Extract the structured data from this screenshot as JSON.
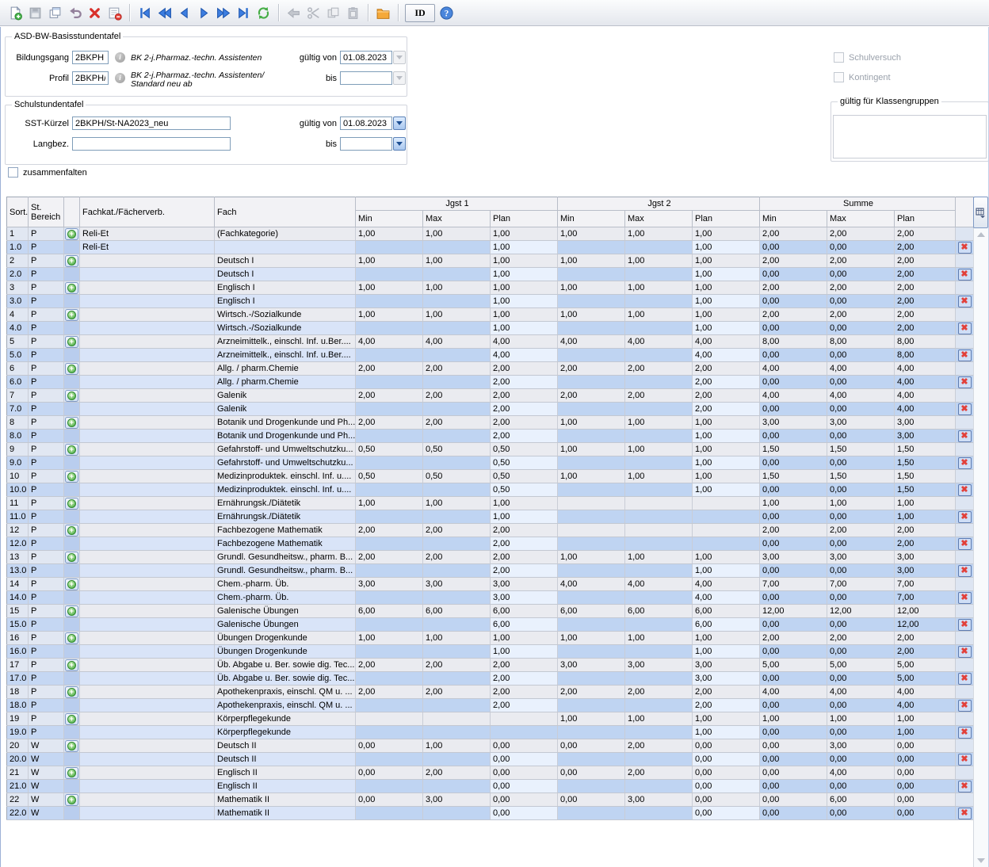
{
  "toolbar": {
    "groups": [
      [
        {
          "name": "new-record-button",
          "icon": "new-record"
        },
        {
          "name": "save-button",
          "icon": "save",
          "disabled": true
        },
        {
          "name": "copy-record-button",
          "icon": "copy-record"
        },
        {
          "name": "undo-button",
          "icon": "undo"
        },
        {
          "name": "delete-record-button",
          "icon": "delete"
        },
        {
          "name": "remove-form-button",
          "icon": "form-remove"
        }
      ],
      [
        {
          "name": "first-record-button",
          "icon": "nav-first"
        },
        {
          "name": "fast-prev-record-button",
          "icon": "nav-prev-fast"
        },
        {
          "name": "prev-record-button",
          "icon": "nav-prev"
        },
        {
          "name": "next-record-button",
          "icon": "nav-next"
        },
        {
          "name": "fast-next-record-button",
          "icon": "nav-next-fast"
        },
        {
          "name": "last-record-button",
          "icon": "nav-last"
        },
        {
          "name": "refresh-button",
          "icon": "refresh"
        }
      ],
      [
        {
          "name": "back-button",
          "icon": "go-back",
          "disabled": true
        },
        {
          "name": "cut-button",
          "icon": "cut",
          "disabled": true
        },
        {
          "name": "copy-button",
          "icon": "copy",
          "disabled": true
        },
        {
          "name": "paste-button",
          "icon": "paste",
          "disabled": true
        }
      ],
      [
        {
          "name": "folder-button",
          "icon": "folder"
        }
      ],
      [
        {
          "name": "id-button",
          "icon": "id",
          "label": "ID"
        },
        {
          "name": "help-button",
          "icon": "help"
        }
      ]
    ]
  },
  "form": {
    "basis": {
      "title": "ASD-BW-Basisstundentafel",
      "bildungsgang_label": "Bildungsgang",
      "bildungsgang_value": "2BKPH",
      "bildungsgang_desc": "BK 2-j.Pharmaz.-techn. Assistenten",
      "profil_label": "Profil",
      "profil_value": "2BKPH/",
      "profil_desc": "BK 2-j.Pharmaz.-techn. Assistenten/\nStandard neu ab",
      "gueltig_von_label": "gültig von",
      "gueltig_von_value": "01.08.2023",
      "bis_label": "bis",
      "bis_value": ""
    },
    "schul": {
      "title": "Schulstundentafel",
      "sst_label": "SST-Kürzel",
      "sst_value": "2BKPH/St-NA2023_neu",
      "langbez_label": "Langbez.",
      "langbez_value": "",
      "gueltig_von_label": "gültig von",
      "gueltig_von_value": "01.08.2023",
      "bis_label": "bis",
      "bis_value": ""
    },
    "zusammenfalten_label": "zusammenfalten",
    "schulversuch_label": "Schulversuch",
    "kontingent_label": "Kontingent",
    "klassengruppen_title": "gültig für Klassengruppen"
  },
  "table": {
    "headers": {
      "sort": "Sort.",
      "bereich": "St.\nBereich",
      "fachkat": "Fachkat./Fächerverb.",
      "fach": "Fach",
      "jgst1": "Jgst 1",
      "jgst2": "Jgst 2",
      "summe": "Summe",
      "min": "Min",
      "max": "Max",
      "plan": "Plan"
    },
    "rows": [
      {
        "s": "1",
        "b": "P",
        "k": "Reli-Et",
        "f": "(Fachkategorie)",
        "v": [
          "1,00",
          "1,00",
          "1,00",
          "1,00",
          "1,00",
          "1,00",
          "2,00",
          "2,00",
          "2,00"
        ],
        "sub": false
      },
      {
        "s": "1.0",
        "b": "P",
        "k": "Reli-Et",
        "f": "",
        "v": [
          "",
          "",
          "1,00",
          "",
          "",
          "1,00",
          "0,00",
          "0,00",
          "2,00"
        ],
        "sub": true
      },
      {
        "s": "2",
        "b": "P",
        "k": "",
        "f": "Deutsch I",
        "v": [
          "1,00",
          "1,00",
          "1,00",
          "1,00",
          "1,00",
          "1,00",
          "2,00",
          "2,00",
          "2,00"
        ],
        "sub": false
      },
      {
        "s": "2.0",
        "b": "P",
        "k": "",
        "f": "Deutsch I",
        "v": [
          "",
          "",
          "1,00",
          "",
          "",
          "1,00",
          "0,00",
          "0,00",
          "2,00"
        ],
        "sub": true
      },
      {
        "s": "3",
        "b": "P",
        "k": "",
        "f": "Englisch I",
        "v": [
          "1,00",
          "1,00",
          "1,00",
          "1,00",
          "1,00",
          "1,00",
          "2,00",
          "2,00",
          "2,00"
        ],
        "sub": false
      },
      {
        "s": "3.0",
        "b": "P",
        "k": "",
        "f": "Englisch I",
        "v": [
          "",
          "",
          "1,00",
          "",
          "",
          "1,00",
          "0,00",
          "0,00",
          "2,00"
        ],
        "sub": true
      },
      {
        "s": "4",
        "b": "P",
        "k": "",
        "f": "Wirtsch.-/Sozialkunde",
        "v": [
          "1,00",
          "1,00",
          "1,00",
          "1,00",
          "1,00",
          "1,00",
          "2,00",
          "2,00",
          "2,00"
        ],
        "sub": false
      },
      {
        "s": "4.0",
        "b": "P",
        "k": "",
        "f": "Wirtsch.-/Sozialkunde",
        "v": [
          "",
          "",
          "1,00",
          "",
          "",
          "1,00",
          "0,00",
          "0,00",
          "2,00"
        ],
        "sub": true
      },
      {
        "s": "5",
        "b": "P",
        "k": "",
        "f": "Arzneimittelk., einschl. Inf. u.Ber....",
        "v": [
          "4,00",
          "4,00",
          "4,00",
          "4,00",
          "4,00",
          "4,00",
          "8,00",
          "8,00",
          "8,00"
        ],
        "sub": false
      },
      {
        "s": "5.0",
        "b": "P",
        "k": "",
        "f": "Arzneimittelk., einschl. Inf. u.Ber....",
        "v": [
          "",
          "",
          "4,00",
          "",
          "",
          "4,00",
          "0,00",
          "0,00",
          "8,00"
        ],
        "sub": true
      },
      {
        "s": "6",
        "b": "P",
        "k": "",
        "f": "Allg. / pharm.Chemie",
        "v": [
          "2,00",
          "2,00",
          "2,00",
          "2,00",
          "2,00",
          "2,00",
          "4,00",
          "4,00",
          "4,00"
        ],
        "sub": false
      },
      {
        "s": "6.0",
        "b": "P",
        "k": "",
        "f": "Allg. / pharm.Chemie",
        "v": [
          "",
          "",
          "2,00",
          "",
          "",
          "2,00",
          "0,00",
          "0,00",
          "4,00"
        ],
        "sub": true
      },
      {
        "s": "7",
        "b": "P",
        "k": "",
        "f": "Galenik",
        "v": [
          "2,00",
          "2,00",
          "2,00",
          "2,00",
          "2,00",
          "2,00",
          "4,00",
          "4,00",
          "4,00"
        ],
        "sub": false
      },
      {
        "s": "7.0",
        "b": "P",
        "k": "",
        "f": "Galenik",
        "v": [
          "",
          "",
          "2,00",
          "",
          "",
          "2,00",
          "0,00",
          "0,00",
          "4,00"
        ],
        "sub": true
      },
      {
        "s": "8",
        "b": "P",
        "k": "",
        "f": "Botanik und Drogenkunde und Ph...",
        "v": [
          "2,00",
          "2,00",
          "2,00",
          "1,00",
          "1,00",
          "1,00",
          "3,00",
          "3,00",
          "3,00"
        ],
        "sub": false
      },
      {
        "s": "8.0",
        "b": "P",
        "k": "",
        "f": "Botanik und Drogenkunde und Ph...",
        "v": [
          "",
          "",
          "2,00",
          "",
          "",
          "1,00",
          "0,00",
          "0,00",
          "3,00"
        ],
        "sub": true
      },
      {
        "s": "9",
        "b": "P",
        "k": "",
        "f": "Gefahrstoff- und Umweltschutzku...",
        "v": [
          "0,50",
          "0,50",
          "0,50",
          "1,00",
          "1,00",
          "1,00",
          "1,50",
          "1,50",
          "1,50"
        ],
        "sub": false
      },
      {
        "s": "9.0",
        "b": "P",
        "k": "",
        "f": "Gefahrstoff- und Umweltschutzku...",
        "v": [
          "",
          "",
          "0,50",
          "",
          "",
          "1,00",
          "0,00",
          "0,00",
          "1,50"
        ],
        "sub": true
      },
      {
        "s": "10",
        "b": "P",
        "k": "",
        "f": "Medizinproduktek. einschl. Inf. u....",
        "v": [
          "0,50",
          "0,50",
          "0,50",
          "1,00",
          "1,00",
          "1,00",
          "1,50",
          "1,50",
          "1,50"
        ],
        "sub": false
      },
      {
        "s": "10.0",
        "b": "P",
        "k": "",
        "f": "Medizinproduktek. einschl. Inf. u....",
        "v": [
          "",
          "",
          "0,50",
          "",
          "",
          "1,00",
          "0,00",
          "0,00",
          "1,50"
        ],
        "sub": true
      },
      {
        "s": "11",
        "b": "P",
        "k": "",
        "f": "Ernährungsk./Diätetik",
        "v": [
          "1,00",
          "1,00",
          "1,00",
          "",
          "",
          "",
          "1,00",
          "1,00",
          "1,00"
        ],
        "sub": false
      },
      {
        "s": "11.0",
        "b": "P",
        "k": "",
        "f": "Ernährungsk./Diätetik",
        "v": [
          "",
          "",
          "1,00",
          "",
          "",
          "",
          "0,00",
          "0,00",
          "1,00"
        ],
        "sub": true
      },
      {
        "s": "12",
        "b": "P",
        "k": "",
        "f": "Fachbezogene Mathematik",
        "v": [
          "2,00",
          "2,00",
          "2,00",
          "",
          "",
          "",
          "2,00",
          "2,00",
          "2,00"
        ],
        "sub": false
      },
      {
        "s": "12.0",
        "b": "P",
        "k": "",
        "f": "Fachbezogene Mathematik",
        "v": [
          "",
          "",
          "2,00",
          "",
          "",
          "",
          "0,00",
          "0,00",
          "2,00"
        ],
        "sub": true
      },
      {
        "s": "13",
        "b": "P",
        "k": "",
        "f": "Grundl. Gesundheitsw., pharm. B...",
        "v": [
          "2,00",
          "2,00",
          "2,00",
          "1,00",
          "1,00",
          "1,00",
          "3,00",
          "3,00",
          "3,00"
        ],
        "sub": false
      },
      {
        "s": "13.0",
        "b": "P",
        "k": "",
        "f": "Grundl. Gesundheitsw., pharm. B...",
        "v": [
          "",
          "",
          "2,00",
          "",
          "",
          "1,00",
          "0,00",
          "0,00",
          "3,00"
        ],
        "sub": true
      },
      {
        "s": "14",
        "b": "P",
        "k": "",
        "f": "Chem.-pharm. Üb.",
        "v": [
          "3,00",
          "3,00",
          "3,00",
          "4,00",
          "4,00",
          "4,00",
          "7,00",
          "7,00",
          "7,00"
        ],
        "sub": false
      },
      {
        "s": "14.0",
        "b": "P",
        "k": "",
        "f": "Chem.-pharm. Üb.",
        "v": [
          "",
          "",
          "3,00",
          "",
          "",
          "4,00",
          "0,00",
          "0,00",
          "7,00"
        ],
        "sub": true
      },
      {
        "s": "15",
        "b": "P",
        "k": "",
        "f": "Galenische Übungen",
        "v": [
          "6,00",
          "6,00",
          "6,00",
          "6,00",
          "6,00",
          "6,00",
          "12,00",
          "12,00",
          "12,00"
        ],
        "sub": false
      },
      {
        "s": "15.0",
        "b": "P",
        "k": "",
        "f": "Galenische Übungen",
        "v": [
          "",
          "",
          "6,00",
          "",
          "",
          "6,00",
          "0,00",
          "0,00",
          "12,00"
        ],
        "sub": true
      },
      {
        "s": "16",
        "b": "P",
        "k": "",
        "f": "Übungen Drogenkunde",
        "v": [
          "1,00",
          "1,00",
          "1,00",
          "1,00",
          "1,00",
          "1,00",
          "2,00",
          "2,00",
          "2,00"
        ],
        "sub": false
      },
      {
        "s": "16.0",
        "b": "P",
        "k": "",
        "f": "Übungen Drogenkunde",
        "v": [
          "",
          "",
          "1,00",
          "",
          "",
          "1,00",
          "0,00",
          "0,00",
          "2,00"
        ],
        "sub": true
      },
      {
        "s": "17",
        "b": "P",
        "k": "",
        "f": "Üb. Abgabe u. Ber. sowie dig. Tec...",
        "v": [
          "2,00",
          "2,00",
          "2,00",
          "3,00",
          "3,00",
          "3,00",
          "5,00",
          "5,00",
          "5,00"
        ],
        "sub": false
      },
      {
        "s": "17.0",
        "b": "P",
        "k": "",
        "f": "Üb. Abgabe u. Ber. sowie dig. Tec...",
        "v": [
          "",
          "",
          "2,00",
          "",
          "",
          "3,00",
          "0,00",
          "0,00",
          "5,00"
        ],
        "sub": true
      },
      {
        "s": "18",
        "b": "P",
        "k": "",
        "f": "Apothekenpraxis, einschl. QM u. ...",
        "v": [
          "2,00",
          "2,00",
          "2,00",
          "2,00",
          "2,00",
          "2,00",
          "4,00",
          "4,00",
          "4,00"
        ],
        "sub": false
      },
      {
        "s": "18.0",
        "b": "P",
        "k": "",
        "f": "Apothekenpraxis, einschl. QM u. ...",
        "v": [
          "",
          "",
          "2,00",
          "",
          "",
          "2,00",
          "0,00",
          "0,00",
          "4,00"
        ],
        "sub": true
      },
      {
        "s": "19",
        "b": "P",
        "k": "",
        "f": "Körperpflegekunde",
        "v": [
          "",
          "",
          "",
          "1,00",
          "1,00",
          "1,00",
          "1,00",
          "1,00",
          "1,00"
        ],
        "sub": false
      },
      {
        "s": "19.0",
        "b": "P",
        "k": "",
        "f": "Körperpflegekunde",
        "v": [
          "",
          "",
          "",
          "",
          "",
          "1,00",
          "0,00",
          "0,00",
          "1,00"
        ],
        "sub": true
      },
      {
        "s": "20",
        "b": "W",
        "k": "",
        "f": "Deutsch II",
        "v": [
          "0,00",
          "1,00",
          "0,00",
          "0,00",
          "2,00",
          "0,00",
          "0,00",
          "3,00",
          "0,00"
        ],
        "sub": false
      },
      {
        "s": "20.0",
        "b": "W",
        "k": "",
        "f": "Deutsch II",
        "v": [
          "",
          "",
          "0,00",
          "",
          "",
          "0,00",
          "0,00",
          "0,00",
          "0,00"
        ],
        "sub": true
      },
      {
        "s": "21",
        "b": "W",
        "k": "",
        "f": "Englisch II",
        "v": [
          "0,00",
          "2,00",
          "0,00",
          "0,00",
          "2,00",
          "0,00",
          "0,00",
          "4,00",
          "0,00"
        ],
        "sub": false
      },
      {
        "s": "21.0",
        "b": "W",
        "k": "",
        "f": "Englisch II",
        "v": [
          "",
          "",
          "0,00",
          "",
          "",
          "0,00",
          "0,00",
          "0,00",
          "0,00"
        ],
        "sub": true
      },
      {
        "s": "22",
        "b": "W",
        "k": "",
        "f": "Mathematik II",
        "v": [
          "0,00",
          "3,00",
          "0,00",
          "0,00",
          "3,00",
          "0,00",
          "0,00",
          "6,00",
          "0,00"
        ],
        "sub": false
      },
      {
        "s": "22.0",
        "b": "W",
        "k": "",
        "f": "Mathematik II",
        "v": [
          "",
          "",
          "0,00",
          "",
          "",
          "0,00",
          "0,00",
          "0,00",
          "0,00"
        ],
        "sub": true
      }
    ]
  }
}
